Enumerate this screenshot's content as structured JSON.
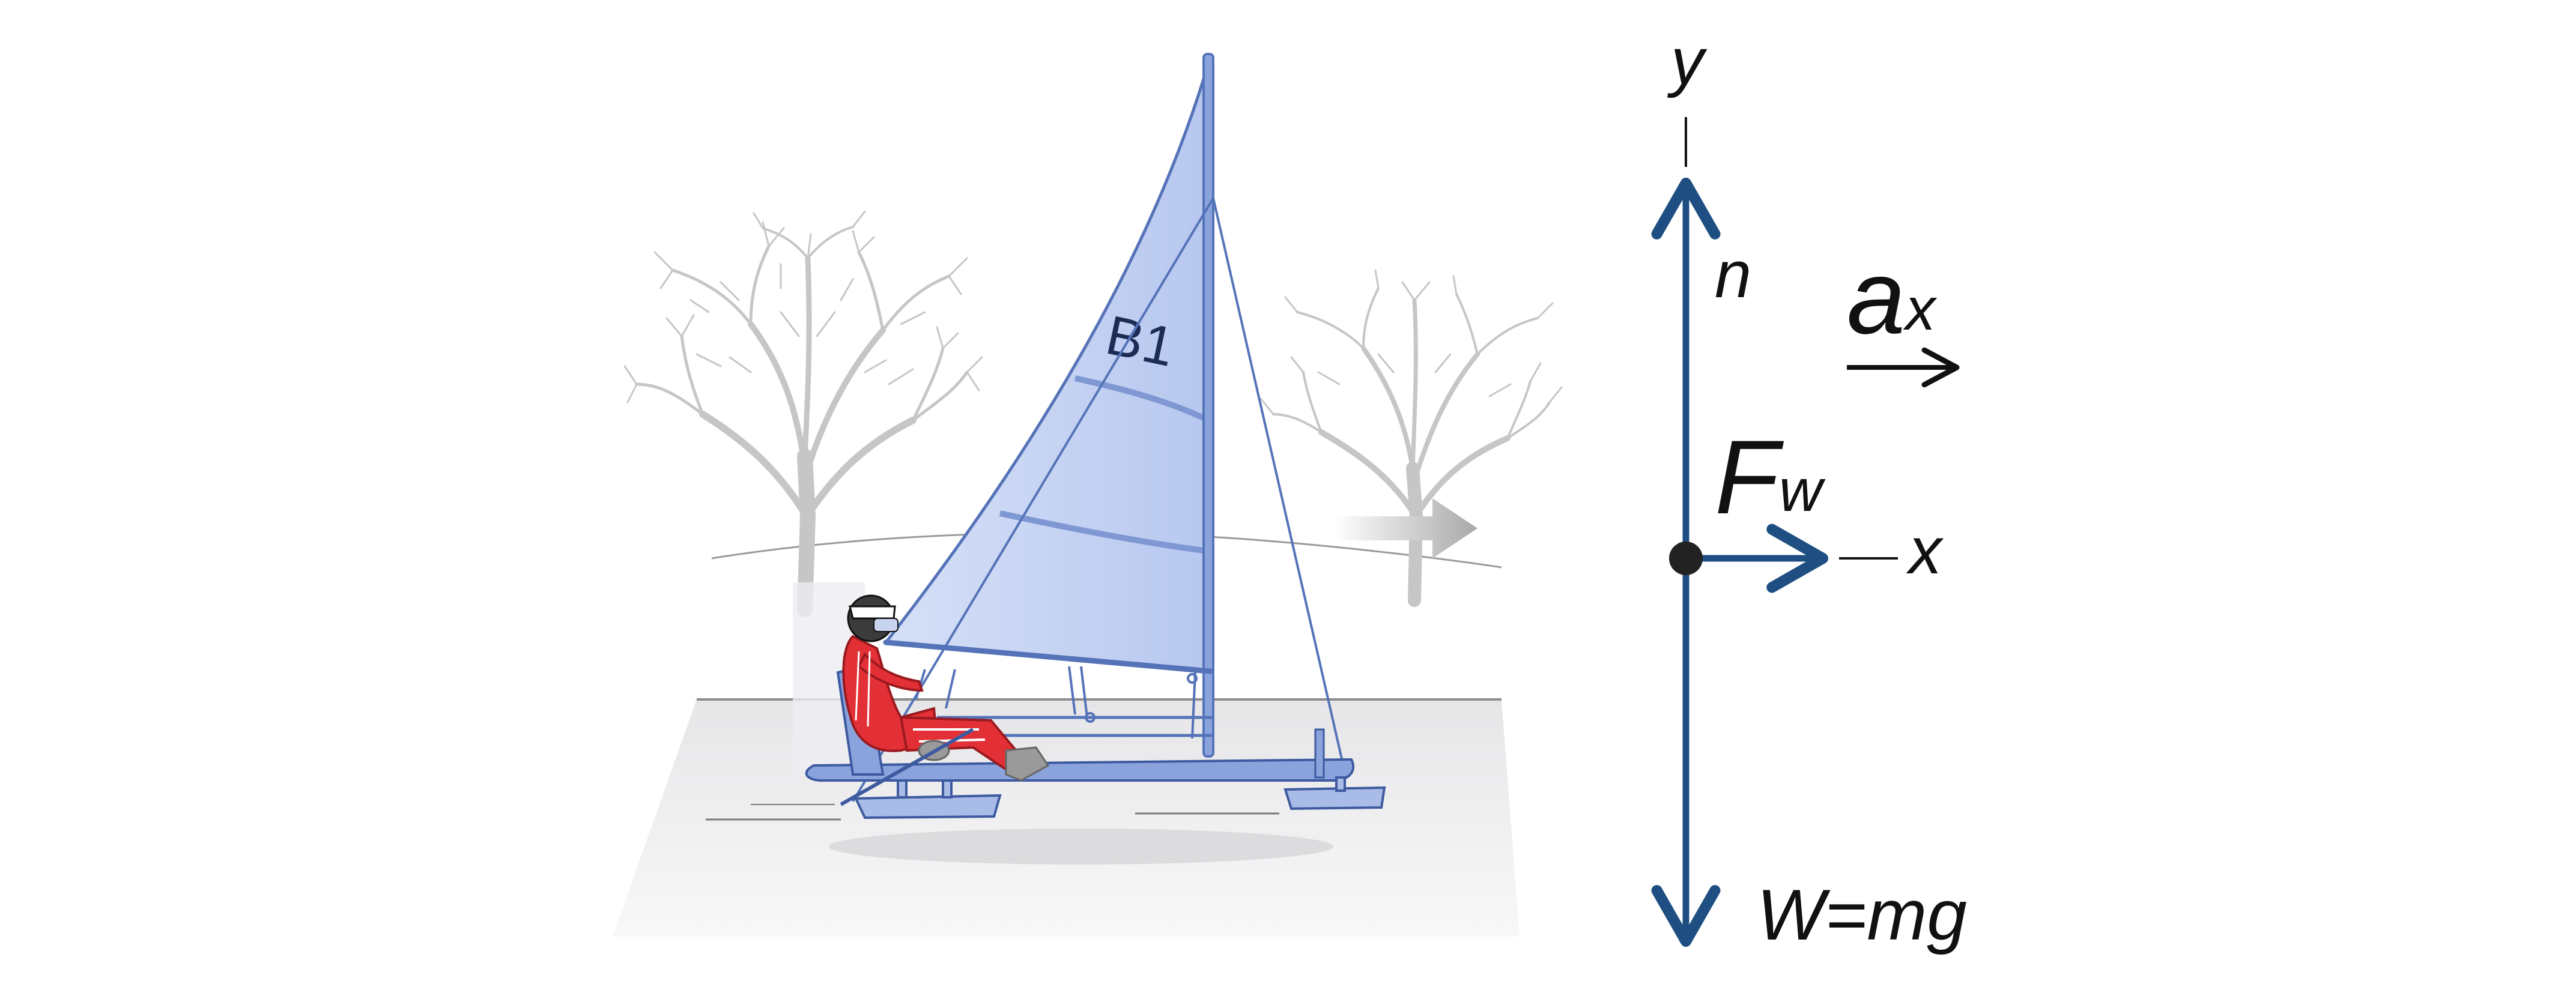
{
  "colors": {
    "vector": "#1f4f82",
    "sail_fill": "#bccbf0",
    "sail_stroke": "#5573b8",
    "hull": "#8aa3dc",
    "suit": "#e23036",
    "tree": "#c6c6c6",
    "ground": "#e9e9ea",
    "wind_arrow": "#b9b9b9",
    "text": "#111111"
  },
  "illustration": {
    "sail_number": "B1",
    "icons": [
      "iceboat-illustration",
      "driver",
      "bare-tree-left",
      "bare-tree-right",
      "wind-arrow"
    ]
  },
  "free_body_diagram": {
    "axis_y_label": "y",
    "axis_x_label": "x",
    "normal_force_label": "n",
    "wind_force_label": "F",
    "wind_force_subscript": "w",
    "acceleration_label": "a",
    "acceleration_subscript": "x",
    "weight_label": "W=mg"
  }
}
